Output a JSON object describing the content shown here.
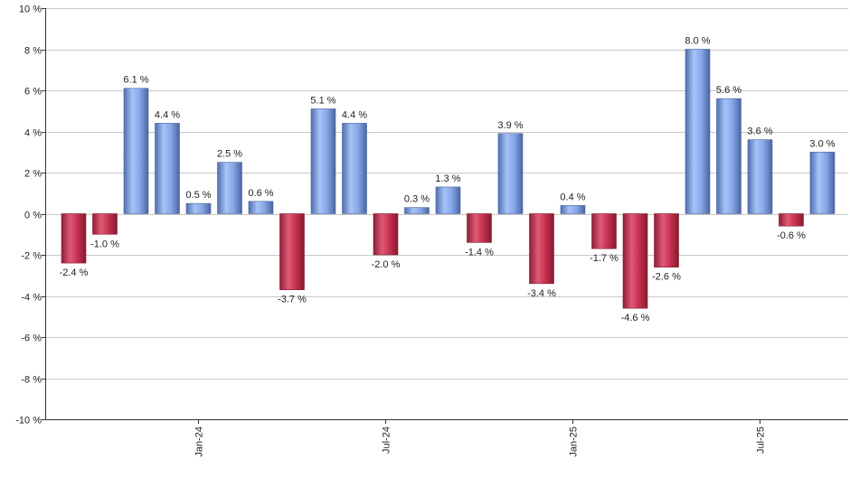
{
  "chart_data": {
    "type": "bar",
    "ylim": [
      -10,
      10
    ],
    "y_ticks": [
      {
        "value": 10,
        "label": "10 %"
      },
      {
        "value": 8,
        "label": "8 %"
      },
      {
        "value": 6,
        "label": "6 %"
      },
      {
        "value": 4,
        "label": "4 %"
      },
      {
        "value": 2,
        "label": "2 %"
      },
      {
        "value": 0,
        "label": "0 %"
      },
      {
        "value": -2,
        "label": "-2 %"
      },
      {
        "value": -4,
        "label": "-4 %"
      },
      {
        "value": -6,
        "label": "-6 %"
      },
      {
        "value": -8,
        "label": "-8 %"
      },
      {
        "value": -10,
        "label": "-10 %"
      }
    ],
    "x_tick_labels": [
      {
        "label": "Jan-24",
        "bar_index": 4
      },
      {
        "label": "Jul-24",
        "bar_index": 10
      },
      {
        "label": "Jan-25",
        "bar_index": 16
      },
      {
        "label": "Jul-25",
        "bar_index": 22
      }
    ],
    "values": [
      -2.4,
      -1.0,
      6.1,
      4.4,
      0.5,
      2.5,
      0.6,
      -3.7,
      5.1,
      4.4,
      -2.0,
      0.3,
      1.3,
      -1.4,
      3.9,
      -3.4,
      0.4,
      -1.7,
      -4.6,
      -2.6,
      8.0,
      5.6,
      3.6,
      -0.6,
      3.0
    ],
    "value_labels": [
      "-2.4 %",
      "-1.0 %",
      "6.1 %",
      "4.4 %",
      "0.5 %",
      "2.5 %",
      "0.6 %",
      "-3.7 %",
      "5.1 %",
      "4.4 %",
      "-2.0 %",
      "0.3 %",
      "1.3 %",
      "-1.4 %",
      "3.9 %",
      "-3.4 %",
      "0.4 %",
      "-1.7 %",
      "-4.6 %",
      "-2.6 %",
      "8.0 %",
      "5.6 %",
      "3.6 %",
      "-0.6 %",
      "3.0 %"
    ],
    "colors": {
      "positive": "#7b9ee6",
      "negative": "#c8304f",
      "grid": "#c8c8c8",
      "axis": "#333333"
    },
    "grid": true,
    "legend": "none"
  }
}
